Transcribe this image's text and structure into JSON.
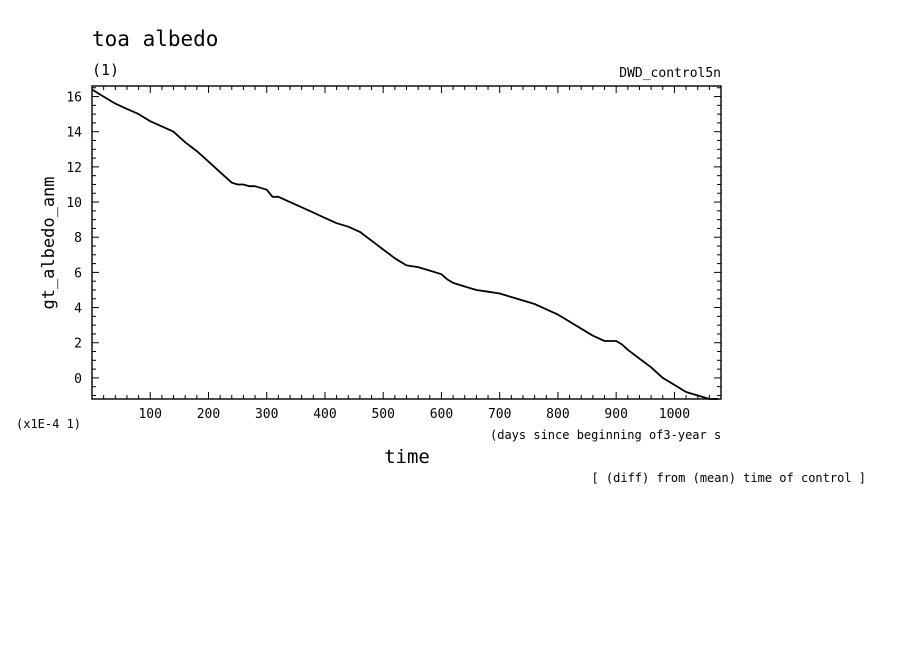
{
  "title": "toa albedo",
  "panel_label": "(1)",
  "experiment": "DWD_control5n",
  "footnote": "[ (diff) from (mean) time of control ]",
  "chart_data": {
    "type": "line",
    "title": "toa albedo",
    "xlabel": "time",
    "xlabel_units": "(days since beginning of3-year s",
    "ylabel": "gt_albedo_anm",
    "y_scale_label": "(x1E-4 1)",
    "xlim": [
      0,
      1080
    ],
    "ylim": [
      -1.2,
      16.6
    ],
    "x_ticks": [
      100,
      200,
      300,
      400,
      500,
      600,
      700,
      800,
      900,
      1000
    ],
    "y_ticks": [
      0,
      2,
      4,
      6,
      8,
      10,
      12,
      14,
      16
    ],
    "grid": false,
    "line_color": "#000000",
    "series": [
      {
        "x": [
          0,
          20,
          40,
          60,
          80,
          100,
          120,
          140,
          160,
          180,
          200,
          220,
          240,
          250,
          260,
          270,
          280,
          300,
          310,
          320,
          340,
          360,
          380,
          400,
          420,
          440,
          460,
          480,
          500,
          520,
          540,
          560,
          580,
          600,
          610,
          620,
          640,
          660,
          680,
          700,
          720,
          740,
          760,
          780,
          800,
          820,
          840,
          860,
          880,
          900,
          910,
          920,
          940,
          960,
          980,
          1000,
          1020,
          1040,
          1060,
          1075
        ],
        "y": [
          16.4,
          16.0,
          15.6,
          15.3,
          15.0,
          14.6,
          14.3,
          14.0,
          13.4,
          12.9,
          12.3,
          11.7,
          11.1,
          11.0,
          11.0,
          10.9,
          10.9,
          10.7,
          10.3,
          10.3,
          10.0,
          9.7,
          9.4,
          9.1,
          8.8,
          8.6,
          8.3,
          7.8,
          7.3,
          6.8,
          6.4,
          6.3,
          6.1,
          5.9,
          5.6,
          5.4,
          5.2,
          5.0,
          4.9,
          4.8,
          4.6,
          4.4,
          4.2,
          3.9,
          3.6,
          3.2,
          2.8,
          2.4,
          2.1,
          2.1,
          1.9,
          1.6,
          1.1,
          0.6,
          0.0,
          -0.4,
          -0.8,
          -1.0,
          -1.3,
          -1.4
        ]
      }
    ]
  }
}
